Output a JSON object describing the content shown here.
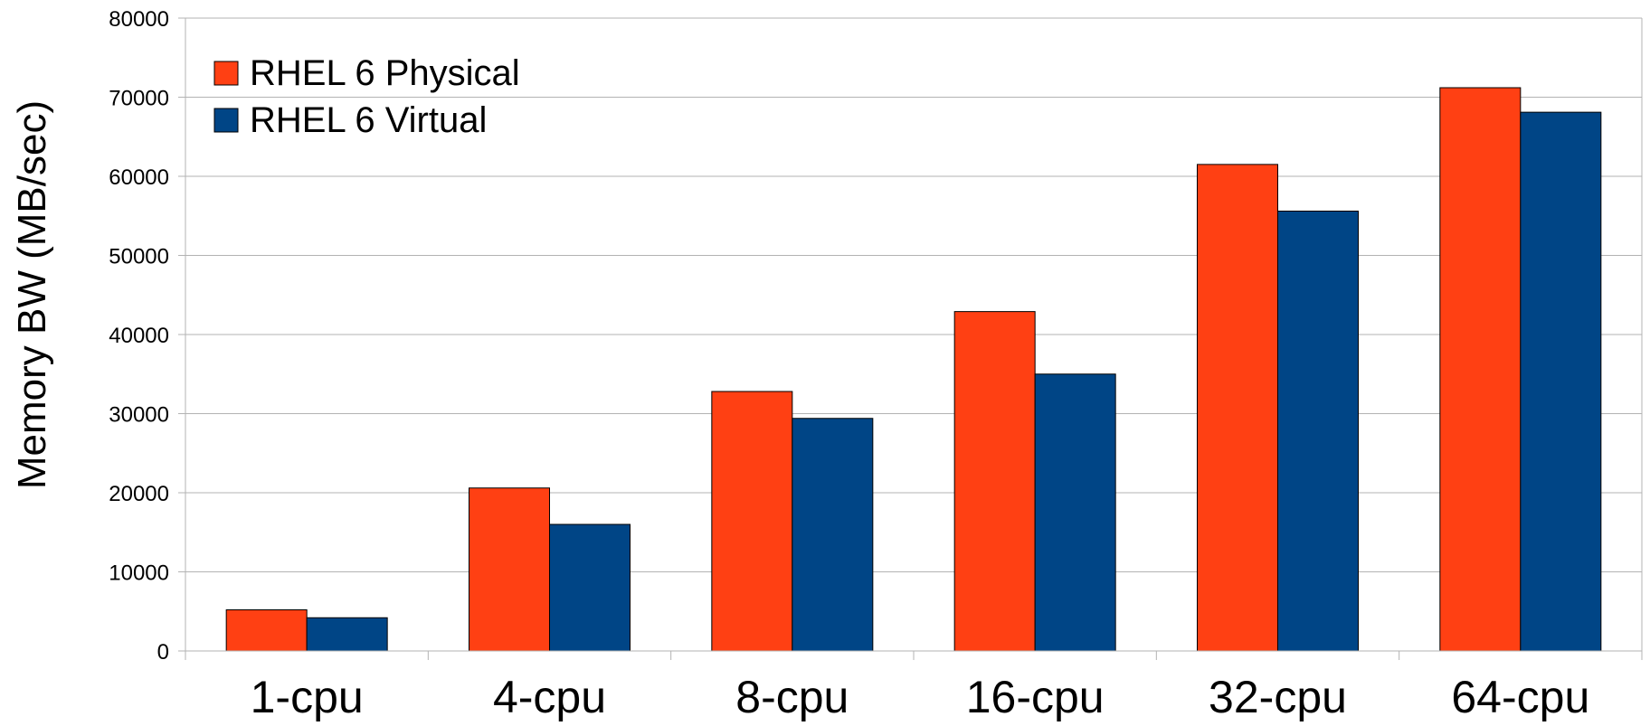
{
  "chart_data": {
    "type": "bar",
    "title": "",
    "xlabel": "",
    "ylabel": "Memory BW (MB/sec)",
    "categories": [
      "1-cpu",
      "4-cpu",
      "8-cpu",
      "16-cpu",
      "32-cpu",
      "64-cpu"
    ],
    "series": [
      {
        "name": "RHEL 6 Physical",
        "color": "#ff4013",
        "values": [
          5200,
          20600,
          32800,
          42900,
          61500,
          71200
        ]
      },
      {
        "name": "RHEL 6 Virtual",
        "color": "#004586",
        "values": [
          4200,
          16000,
          29400,
          35000,
          55600,
          68100
        ]
      }
    ],
    "ylim": [
      0,
      80000
    ],
    "yticks": [
      "0",
      "10000",
      "20000",
      "30000",
      "40000",
      "50000",
      "60000",
      "70000",
      "80000"
    ],
    "grid": true,
    "legend_position": "top-left"
  }
}
